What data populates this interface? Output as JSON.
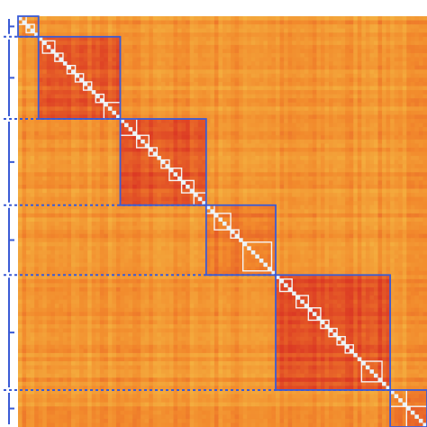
{
  "chart_data": {
    "type": "heatmap",
    "title": "",
    "xlabel": "",
    "ylabel": "",
    "grid": false,
    "legend": "none",
    "size": 100,
    "colors": {
      "low": "#f5c44a",
      "mid": "#f2892c",
      "high": "#dc3a24",
      "diagonal": "#e9f3f9",
      "box": "#3a5bd6",
      "dotted": "#3a5bd6",
      "bracket": "#3a5bd6"
    },
    "clusters": [
      {
        "start": 0,
        "end": 4,
        "level": 0.45
      },
      {
        "start": 5,
        "end": 24,
        "level": 0.78
      },
      {
        "start": 25,
        "end": 45,
        "level": 0.8
      },
      {
        "start": 46,
        "end": 62,
        "level": 0.6
      },
      {
        "start": 63,
        "end": 90,
        "level": 0.84
      },
      {
        "start": 91,
        "end": 99,
        "level": 0.55
      }
    ],
    "background_level": 0.38,
    "subclusters": [
      [
        0,
        1
      ],
      [
        2,
        3
      ],
      [
        6,
        8
      ],
      [
        9,
        10
      ],
      [
        12,
        13
      ],
      [
        14,
        15
      ],
      [
        16,
        17
      ],
      [
        19,
        20
      ],
      [
        21,
        24
      ],
      [
        25,
        28
      ],
      [
        29,
        31
      ],
      [
        32,
        33
      ],
      [
        35,
        36
      ],
      [
        37,
        39
      ],
      [
        40,
        42
      ],
      [
        43,
        45
      ],
      [
        46,
        47
      ],
      [
        48,
        51
      ],
      [
        52,
        53
      ],
      [
        55,
        61
      ],
      [
        64,
        66
      ],
      [
        68,
        70
      ],
      [
        71,
        73
      ],
      [
        74,
        75
      ],
      [
        76,
        77
      ],
      [
        78,
        79
      ],
      [
        80,
        81
      ],
      [
        84,
        88
      ],
      [
        91,
        94
      ],
      [
        95,
        99
      ]
    ]
  }
}
